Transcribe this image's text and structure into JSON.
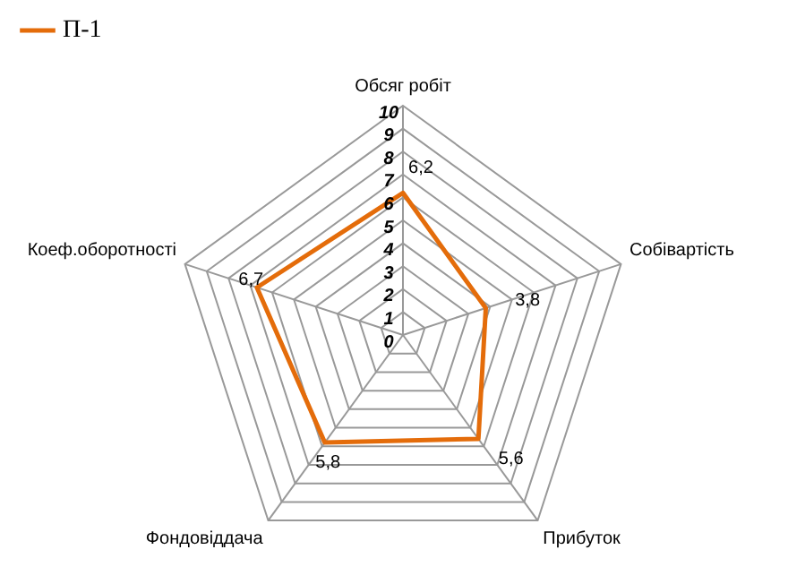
{
  "chart_data": {
    "type": "radar",
    "categories": [
      "Обсяг робіт",
      "Собівартість",
      "Прибуток",
      "Фондовіддача",
      "Коеф.оборотності"
    ],
    "series": [
      {
        "name": "П-1",
        "color": "#e46c0a",
        "values": [
          6.2,
          3.8,
          5.6,
          5.8,
          6.7
        ],
        "value_labels": [
          "6,2",
          "3,8",
          "5,6",
          "5,8",
          "6,7"
        ]
      }
    ],
    "ylim": [
      0,
      10
    ],
    "yticks": [
      0,
      1,
      2,
      3,
      4,
      5,
      6,
      7,
      8,
      9,
      10
    ],
    "grid": true,
    "legend": "top left",
    "marker": "none",
    "line_style": "solid"
  }
}
